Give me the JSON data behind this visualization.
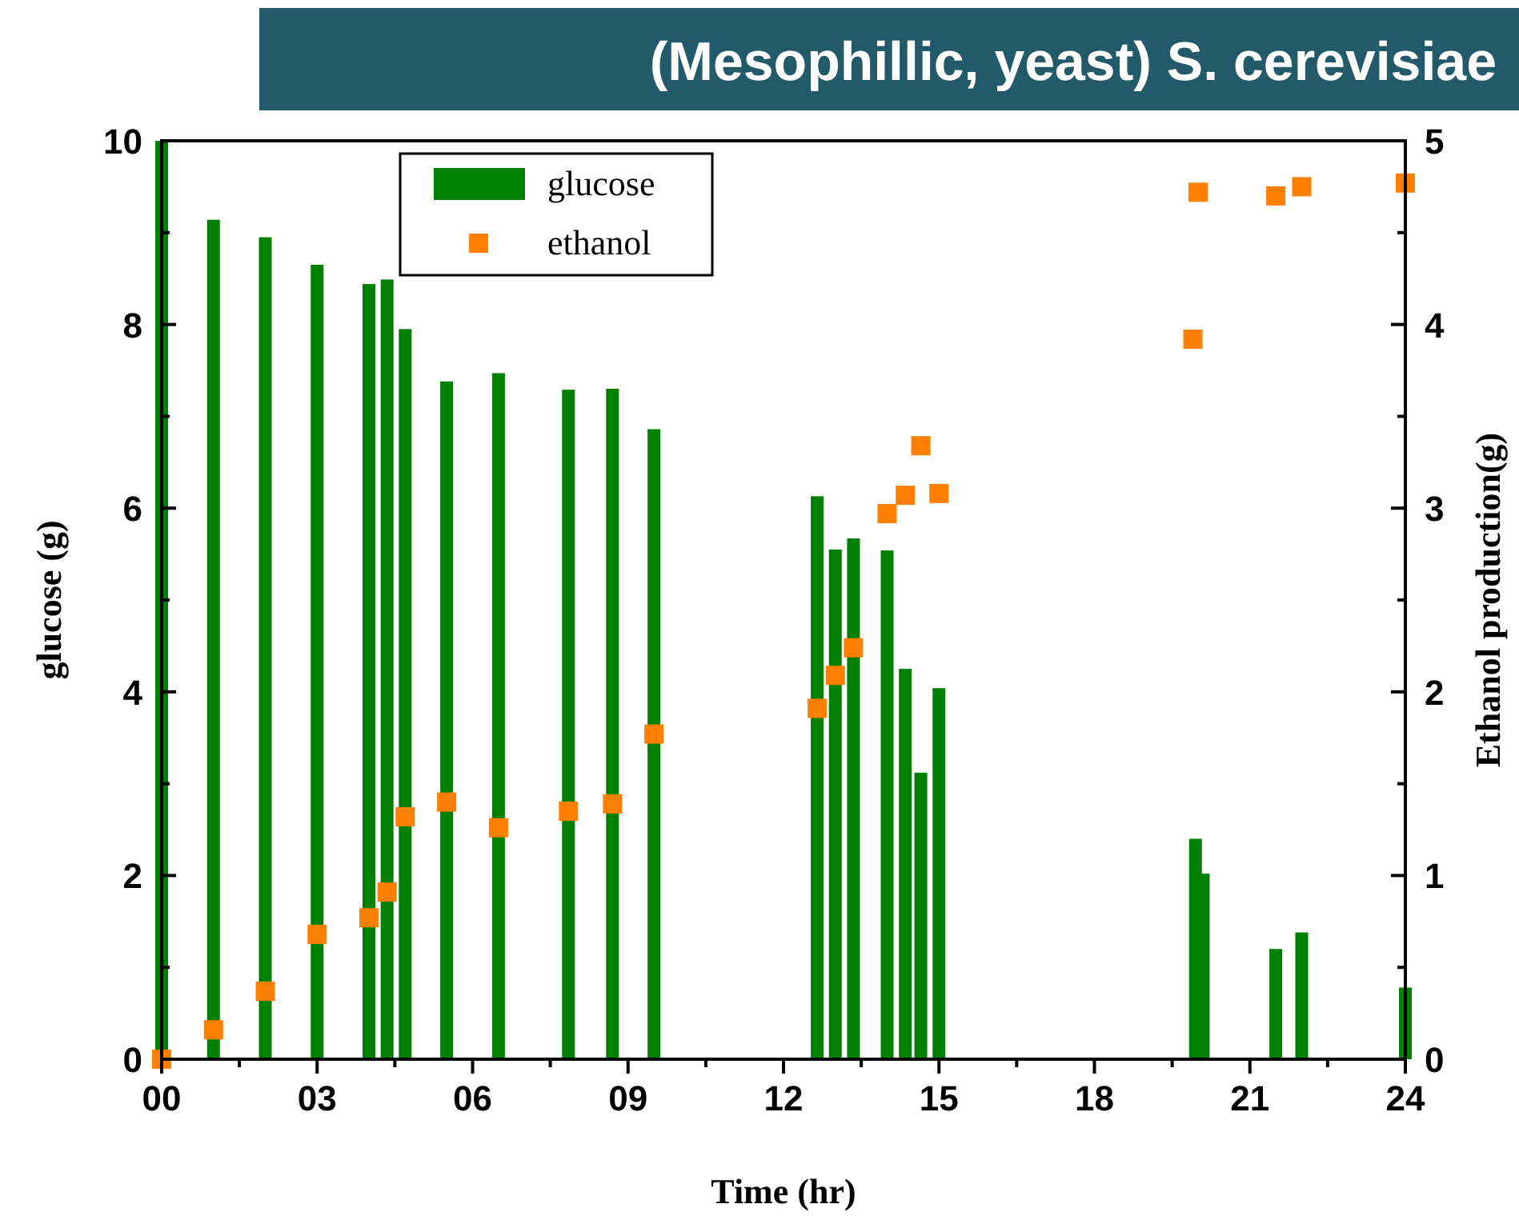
{
  "chart_data": {
    "type": "bar",
    "title": "(Mesophillic, yeast) S. cerevisiae",
    "xlabel": "Time (hr)",
    "ylabel": "glucose (g)",
    "y2label": "Ethanol production(g)",
    "xlim": [
      0,
      24
    ],
    "xticks": [
      {
        "value": 0,
        "label": "00"
      },
      {
        "value": 1.5,
        "label": null
      },
      {
        "value": 3,
        "label": "03"
      },
      {
        "value": 4.5,
        "label": null
      },
      {
        "value": 6,
        "label": "06"
      },
      {
        "value": 7.5,
        "label": null
      },
      {
        "value": 9,
        "label": "09"
      },
      {
        "value": 10.5,
        "label": null
      },
      {
        "value": 12,
        "label": "12"
      },
      {
        "value": 13.5,
        "label": null
      },
      {
        "value": 15,
        "label": "15"
      },
      {
        "value": 16.5,
        "label": null
      },
      {
        "value": 18,
        "label": "18"
      },
      {
        "value": 19.5,
        "label": null
      },
      {
        "value": 21,
        "label": "21"
      },
      {
        "value": 22.5,
        "label": null
      },
      {
        "value": 24,
        "label": "24"
      }
    ],
    "ylim": [
      0,
      10
    ],
    "yticks": [
      0,
      {
        "value": 1,
        "label": null
      },
      2,
      {
        "value": 3,
        "label": null
      },
      4,
      {
        "value": 5,
        "label": null
      },
      6,
      {
        "value": 7,
        "label": null
      },
      8,
      {
        "value": 9,
        "label": null
      },
      10
    ],
    "y2lim": [
      0,
      5
    ],
    "y2ticks": [
      0,
      {
        "value": 0.5,
        "label": null
      },
      1,
      {
        "value": 1.5,
        "label": null
      },
      2,
      {
        "value": 2.5,
        "label": null
      },
      3,
      {
        "value": 3.5,
        "label": null
      },
      4,
      {
        "value": 4.5,
        "label": null
      },
      5
    ],
    "legend": "top",
    "grid": false,
    "series": [
      {
        "name": "glucose",
        "color": "#008000",
        "x": [
          0,
          1,
          2,
          3,
          4,
          4.35,
          4.7,
          5.5,
          6.5,
          7.85,
          8.7,
          9.5,
          12.65,
          13,
          13.35,
          14,
          14.35,
          14.65,
          15,
          19.95,
          20.1,
          21.5,
          22,
          24
        ],
        "values": [
          10,
          9.14,
          8.95,
          8.65,
          8.44,
          8.49,
          7.95,
          7.38,
          7.47,
          7.29,
          7.3,
          6.86,
          6.13,
          5.55,
          5.67,
          5.54,
          4.25,
          3.12,
          4.04,
          2.4,
          2.02,
          1.2,
          1.38,
          0.78
        ]
      },
      {
        "name": "ethanol",
        "type": "scatter",
        "axis": "y2",
        "marker": "square",
        "color": "#ff8000",
        "x": [
          0,
          1,
          2,
          3,
          4,
          4.35,
          4.7,
          5.5,
          6.5,
          7.85,
          8.7,
          9.5,
          12.65,
          13,
          13.35,
          14,
          14.35,
          14.65,
          15,
          19.9,
          20,
          21.5,
          22,
          24
        ],
        "values": [
          0,
          0.16,
          0.37,
          0.68,
          0.77,
          0.91,
          1.32,
          1.4,
          1.26,
          1.35,
          1.39,
          1.77,
          1.91,
          2.09,
          2.24,
          2.97,
          3.07,
          3.34,
          3.08,
          3.92,
          4.72,
          4.7,
          4.75,
          4.77
        ]
      }
    ]
  }
}
